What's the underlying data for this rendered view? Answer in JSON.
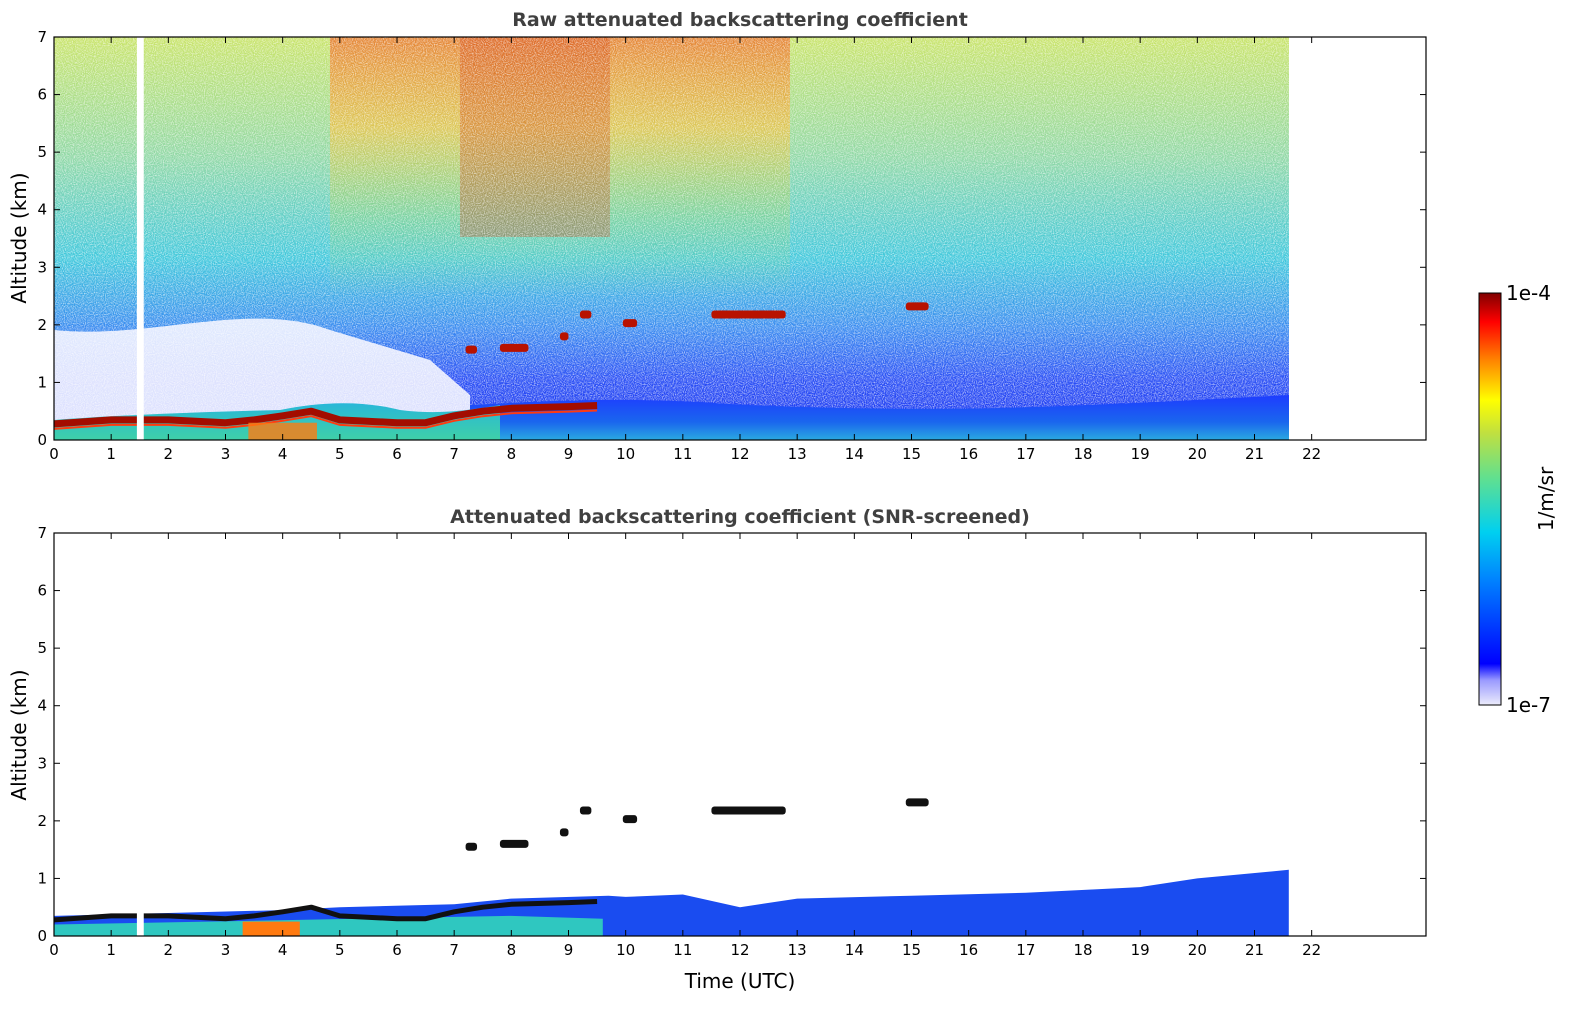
{
  "chart_data": [
    {
      "type": "heatmap",
      "title": "Raw attenuated backscattering coefficient",
      "xlabel": "",
      "ylabel": "Altitude (km)",
      "xlim": [
        0,
        24
      ],
      "ylim": [
        0,
        7
      ],
      "x_ticks": [
        "0",
        "1",
        "2",
        "3",
        "4",
        "5",
        "6",
        "7",
        "8",
        "9",
        "10",
        "11",
        "12",
        "13",
        "14",
        "15",
        "16",
        "17",
        "18",
        "19",
        "20",
        "21",
        "22"
      ],
      "y_ticks": [
        "0",
        "1",
        "2",
        "3",
        "4",
        "5",
        "6",
        "7"
      ],
      "data_extent_hours": [
        0,
        21.6
      ],
      "data_gap_hours": [
        1.45,
        1.57
      ],
      "boundary_layer_top_km": {
        "time_h": [
          0,
          1,
          2,
          3,
          3.5,
          4,
          4.5,
          5,
          6,
          6.5,
          7,
          7.5,
          8,
          9,
          9.5
        ],
        "altitude_km": [
          0.28,
          0.35,
          0.35,
          0.3,
          0.35,
          0.42,
          0.5,
          0.35,
          0.3,
          0.3,
          0.42,
          0.5,
          0.55,
          0.58,
          0.6
        ]
      },
      "cloud_layers": [
        {
          "time_start_h": 7.2,
          "time_end_h": 7.4,
          "altitude_km": 1.57
        },
        {
          "time_start_h": 7.8,
          "time_end_h": 8.3,
          "altitude_km": 1.6
        },
        {
          "time_start_h": 8.85,
          "time_end_h": 9.0,
          "altitude_km": 1.8
        },
        {
          "time_start_h": 9.2,
          "time_end_h": 9.4,
          "altitude_km": 2.18
        },
        {
          "time_start_h": 9.95,
          "time_end_h": 10.2,
          "altitude_km": 2.03
        },
        {
          "time_start_h": 11.5,
          "time_end_h": 12.8,
          "altitude_km": 2.18
        },
        {
          "time_start_h": 14.9,
          "time_end_h": 15.3,
          "altitude_km": 2.32
        }
      ]
    },
    {
      "type": "heatmap",
      "title": "Attenuated backscattering coefficient (SNR-screened)",
      "xlabel": "Time (UTC)",
      "ylabel": "Altitude (km)",
      "xlim": [
        0,
        24
      ],
      "ylim": [
        0,
        7
      ],
      "x_ticks": [
        "0",
        "1",
        "2",
        "3",
        "4",
        "5",
        "6",
        "7",
        "8",
        "9",
        "10",
        "11",
        "12",
        "13",
        "14",
        "15",
        "16",
        "17",
        "18",
        "19",
        "20",
        "21",
        "22"
      ],
      "y_ticks": [
        "0",
        "1",
        "2",
        "3",
        "4",
        "5",
        "6",
        "7"
      ],
      "data_extent_hours": [
        0,
        21.6
      ],
      "aerosol_layer_top_km": {
        "time_h": [
          0,
          2,
          4,
          5,
          7,
          8,
          9.7,
          10,
          11,
          12,
          13,
          15,
          17,
          19,
          20,
          21.6
        ],
        "altitude_km": [
          0.35,
          0.4,
          0.45,
          0.5,
          0.55,
          0.65,
          0.7,
          0.68,
          0.72,
          0.5,
          0.65,
          0.7,
          0.75,
          0.85,
          1.0,
          1.15
        ]
      },
      "cloud_layers": [
        {
          "time_start_h": 7.2,
          "time_end_h": 7.4,
          "altitude_km": 1.55
        },
        {
          "time_start_h": 7.8,
          "time_end_h": 8.3,
          "altitude_km": 1.6
        },
        {
          "time_start_h": 8.85,
          "time_end_h": 9.0,
          "altitude_km": 1.8
        },
        {
          "time_start_h": 9.2,
          "time_end_h": 9.4,
          "altitude_km": 2.18
        },
        {
          "time_start_h": 9.95,
          "time_end_h": 10.2,
          "altitude_km": 2.03
        },
        {
          "time_start_h": 11.5,
          "time_end_h": 12.8,
          "altitude_km": 2.18
        },
        {
          "time_start_h": 14.9,
          "time_end_h": 15.3,
          "altitude_km": 2.32
        }
      ]
    }
  ],
  "colorbar": {
    "max_label": "1e-4",
    "min_label": "1e-7",
    "unit_label": "1/m/sr",
    "colors": [
      "#e6e6fa",
      "#0000ff",
      "#00bfff",
      "#40e0d0",
      "#9acd32",
      "#ffff00",
      "#ff8c00",
      "#ff0000",
      "#800000"
    ]
  }
}
